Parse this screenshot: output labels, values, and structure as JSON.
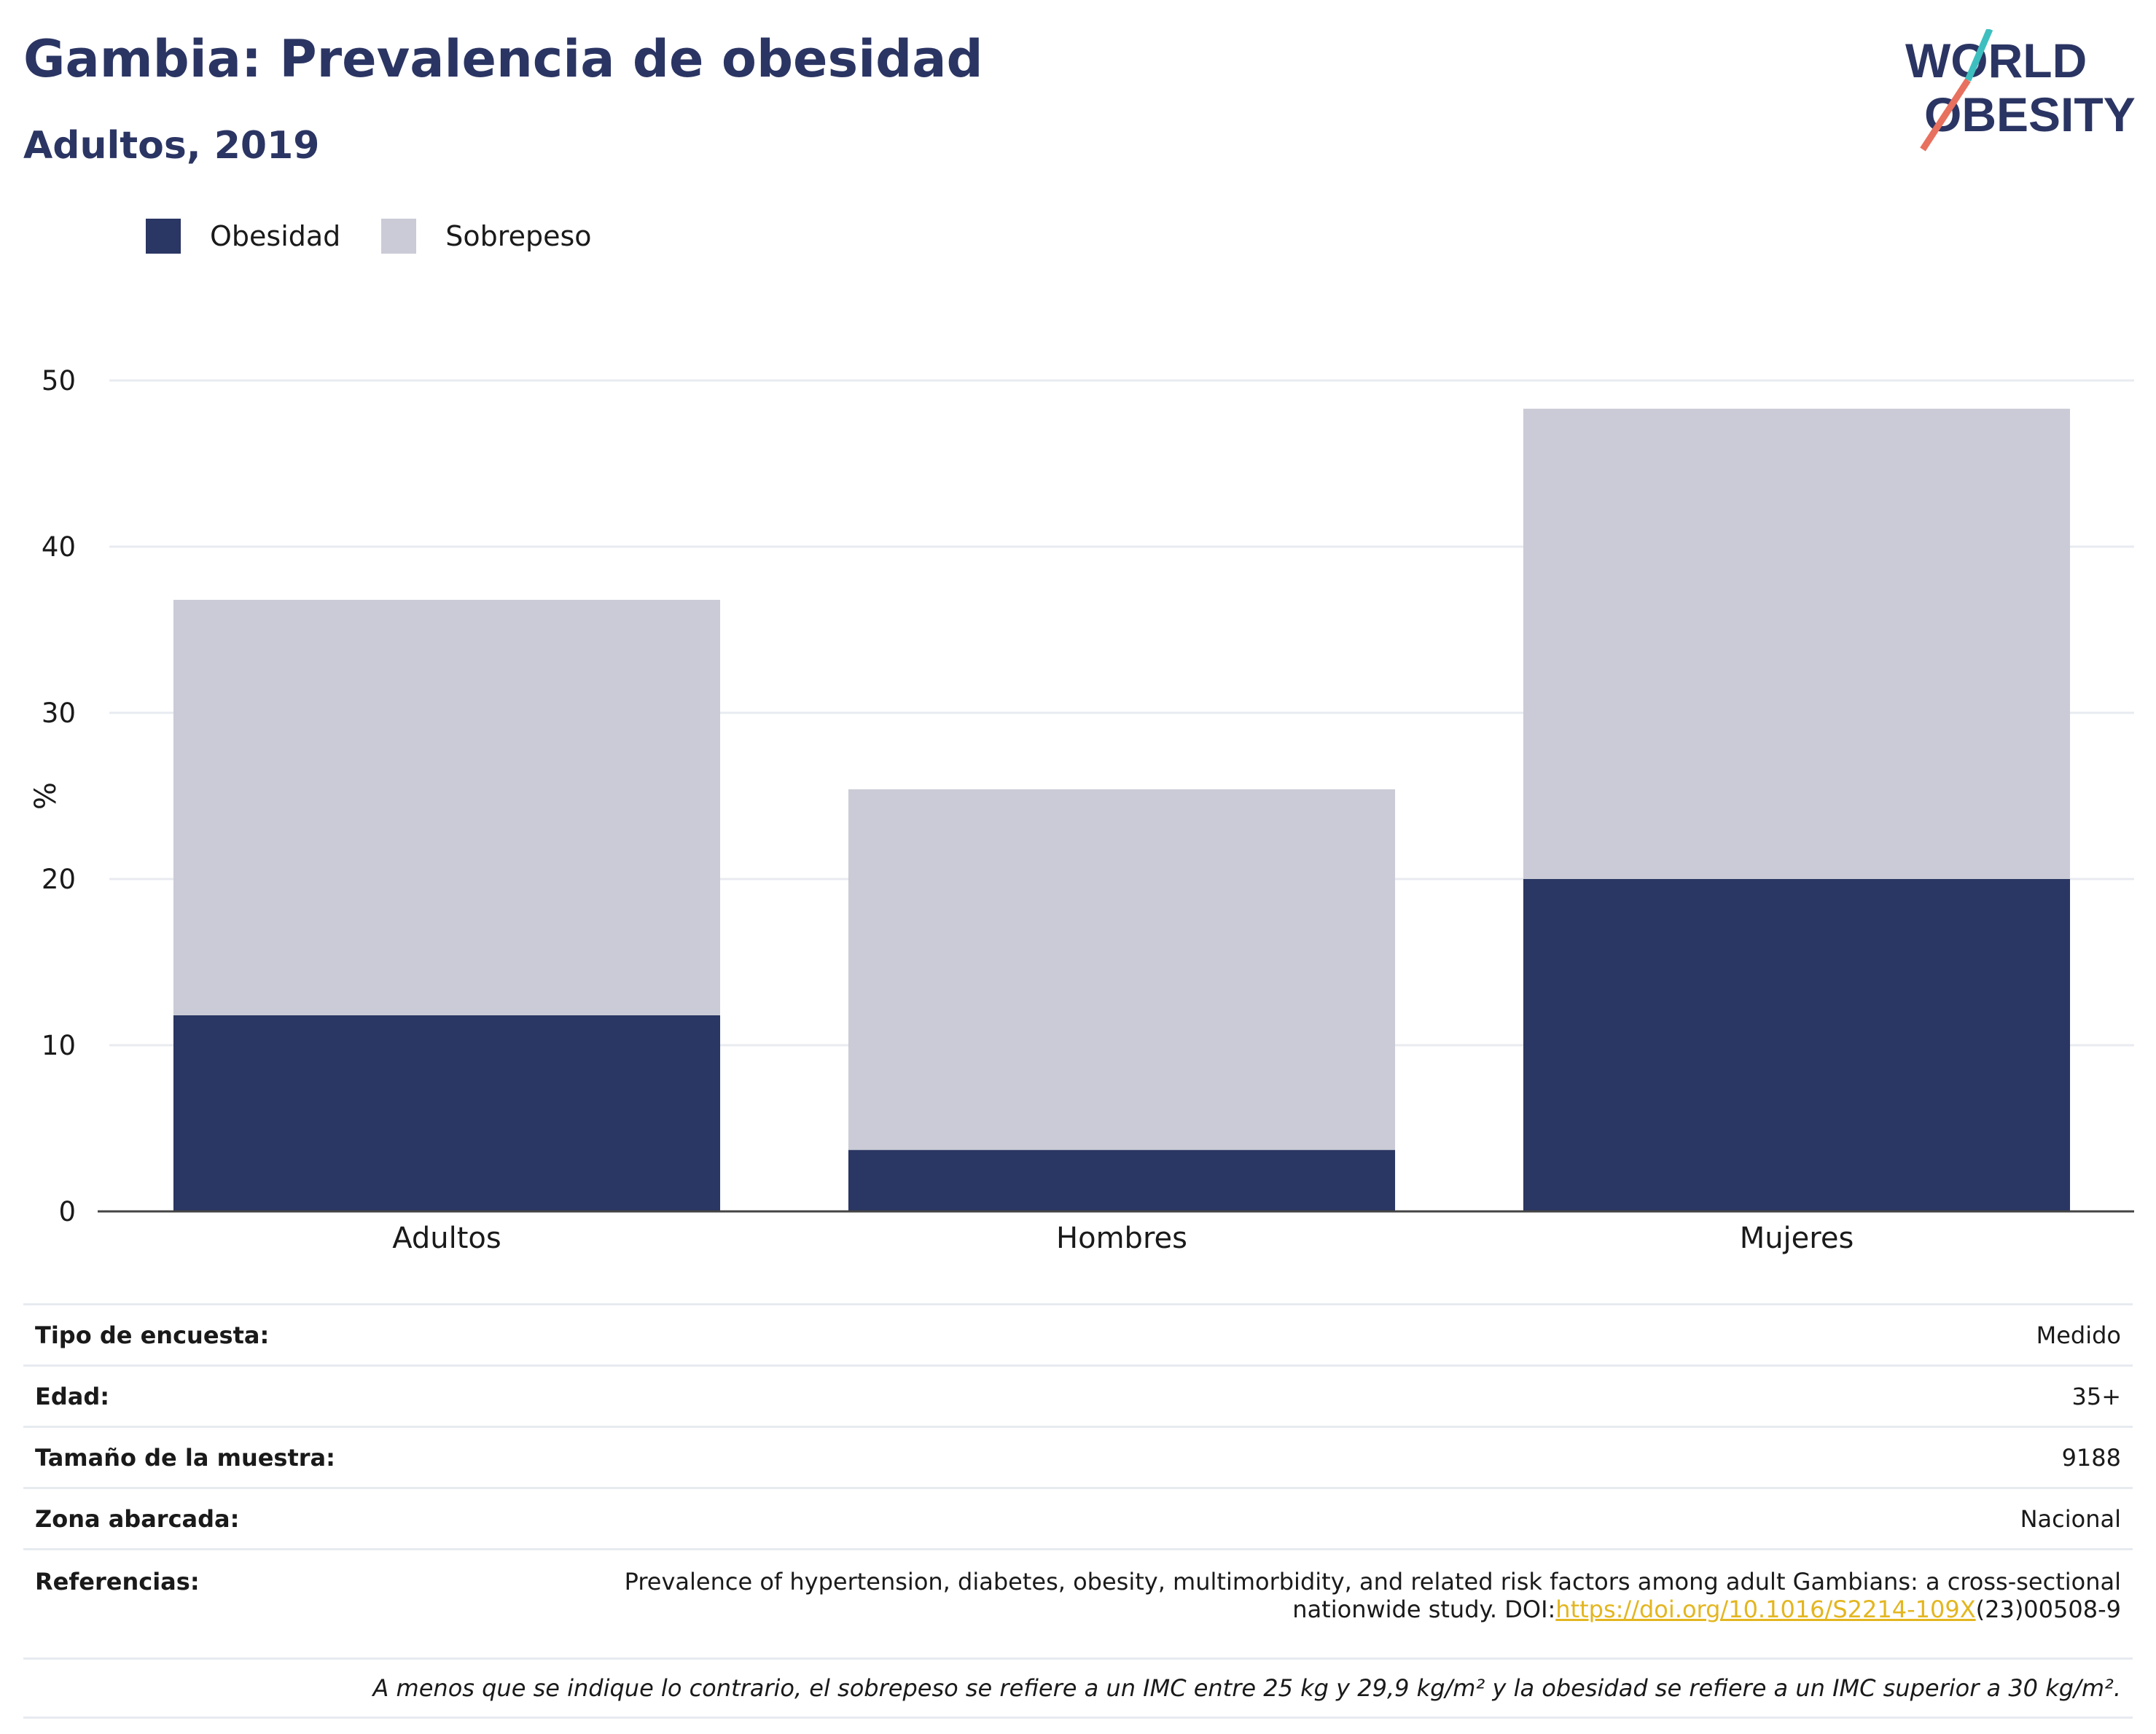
{
  "header": {
    "title": "Gambia: Prevalencia de obesidad",
    "subtitle": "Adultos, 2019",
    "logo_line1": "WORLD",
    "logo_line2": "OBESITY"
  },
  "colors": {
    "obesidad": "#2a3663",
    "sobrepeso": "#cacbd6",
    "title": "#2b3563",
    "logo_slash_top": "#3ebfbf",
    "logo_slash_bottom": "#e8705e",
    "link": "#e3b620"
  },
  "chart_data": {
    "type": "bar",
    "stacked": true,
    "categories": [
      "Adultos",
      "Hombres",
      "Mujeres"
    ],
    "series": [
      {
        "name": "Obesidad",
        "values": [
          11.8,
          3.7,
          20.0
        ]
      },
      {
        "name": "Sobrepeso",
        "values": [
          25.0,
          21.7,
          28.3
        ]
      }
    ],
    "xlabel": "",
    "ylabel": "%",
    "ylim": [
      0,
      50
    ],
    "yticks": [
      0,
      10,
      20,
      30,
      40,
      50
    ],
    "grid": true,
    "legend_position": "top-left"
  },
  "info": {
    "rows": [
      {
        "label": "Tipo de encuesta:",
        "value": "Medido"
      },
      {
        "label": "Edad:",
        "value": "35+"
      },
      {
        "label": "Tamaño de la muestra:",
        "value": "9188"
      },
      {
        "label": "Zona abarcada:",
        "value": "Nacional"
      }
    ],
    "references_label": "Referencias:",
    "references_text_line1": "Prevalence of hypertension, diabetes, obesity, multimorbidity, and related risk factors among adult Gambians: a cross-sectional",
    "references_text_pre": "nationwide study. DOI:",
    "references_doi": "https://doi.org/10.1016/S2214-109X",
    "references_text_post": "(23)00508-9",
    "footnote": "A menos que se indique lo contrario, el sobrepeso se refiere a un IMC entre 25 kg y 29,9 kg/m² y la obesidad se refiere a un IMC superior a 30 kg/m²."
  }
}
